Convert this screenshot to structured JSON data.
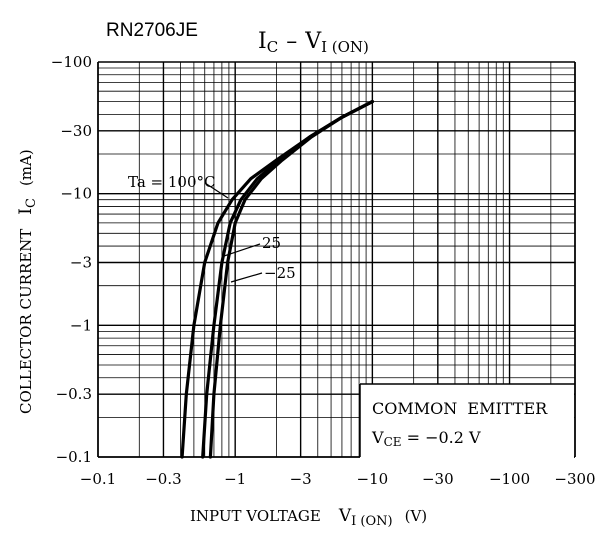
{
  "chart_data": {
    "type": "line",
    "part_number": "RN2706JE",
    "title": {
      "main": "I",
      "sub": "C",
      "dash": "–",
      "main2": "V",
      "sub2": "I (ON)"
    },
    "xlabel": {
      "text": "INPUT VOLTAGE",
      "sym": "V",
      "sub": "I (ON)",
      "unit": "(V)"
    },
    "ylabel": {
      "text": "COLLECTOR CURRENT",
      "sym": "I",
      "sub": "C",
      "unit": "(mA)"
    },
    "x_scale": "log",
    "y_scale": "log",
    "xlim": [
      -0.1,
      -300
    ],
    "ylim": [
      -0.1,
      -100
    ],
    "x_ticks": [
      {
        "value": -0.1,
        "label": "−0.1"
      },
      {
        "value": -0.3,
        "label": "−0.3"
      },
      {
        "value": -1,
        "label": "−1"
      },
      {
        "value": -3,
        "label": "−3"
      },
      {
        "value": -10,
        "label": "−10"
      },
      {
        "value": -30,
        "label": "−30"
      },
      {
        "value": -100,
        "label": "−100"
      },
      {
        "value": -300,
        "label": "−300"
      }
    ],
    "y_ticks": [
      {
        "value": -100,
        "label": "−100"
      },
      {
        "value": -30,
        "label": "−30"
      },
      {
        "value": -10,
        "label": "−10"
      },
      {
        "value": -3,
        "label": "−3"
      },
      {
        "value": -1,
        "label": "−1"
      },
      {
        "value": -0.3,
        "label": "−0.3"
      },
      {
        "value": -0.1,
        "label": "−0.1"
      }
    ],
    "grid": true,
    "series": [
      {
        "name": "Ta = 100°C",
        "x": [
          -0.41,
          -0.44,
          -0.5,
          -0.6,
          -0.75,
          -0.95,
          -1.3,
          -2.0,
          -3.5,
          -6.0,
          -10.0
        ],
        "y": [
          -0.1,
          -0.3,
          -1,
          -3,
          -6,
          -9,
          -13,
          -18,
          -27,
          -38,
          -50
        ]
      },
      {
        "name": "25",
        "x": [
          -0.58,
          -0.62,
          -0.7,
          -0.8,
          -0.92,
          -1.1,
          -1.45,
          -2.1,
          -3.5,
          -6.0,
          -10.0
        ],
        "y": [
          -0.1,
          -0.3,
          -1,
          -3,
          -6,
          -9,
          -13,
          -18,
          -27,
          -38,
          -50
        ]
      },
      {
        "name": "−25",
        "x": [
          -0.66,
          -0.7,
          -0.78,
          -0.88,
          -1.0,
          -1.18,
          -1.55,
          -2.2,
          -3.6,
          -6.0,
          -10.0
        ],
        "y": [
          -0.1,
          -0.3,
          -1,
          -3,
          -6,
          -9,
          -13,
          -18,
          -27,
          -38,
          -50
        ]
      }
    ],
    "legend_box": {
      "line1": "COMMON  EMITTER",
      "line2_sym": "V",
      "line2_sub": "CE",
      "line2_rest": " = −0.2 V"
    }
  }
}
